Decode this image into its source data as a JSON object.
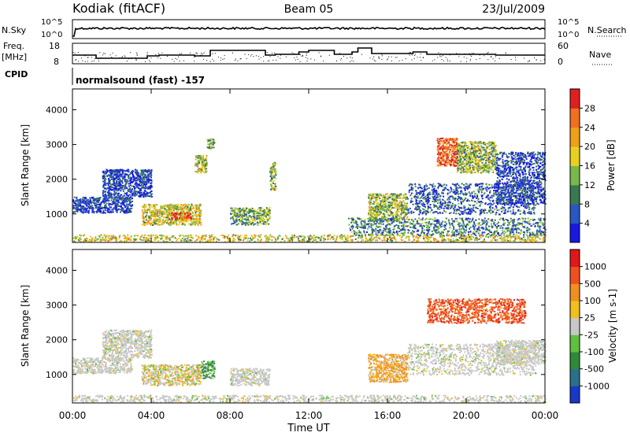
{
  "header": {
    "station": "Kodiak (fitACF)",
    "beam": "Beam 05",
    "date": "23/Jul/2009"
  },
  "noise_panel": {
    "left_label": "N.Sky",
    "left_ticks": [
      "10^5",
      "10^0"
    ],
    "right_ticks": [
      "10^5",
      "10^0"
    ],
    "right_label": "N.Search"
  },
  "freq_panel": {
    "left_label_line1": "Freq.",
    "left_label_line2": "[MHz]",
    "left_ticks": [
      "18",
      "8"
    ],
    "right_ticks": [
      "60",
      "0"
    ],
    "right_label": "Nave"
  },
  "cpid": {
    "label": "CPID",
    "program": "normalsound (fast) -157"
  },
  "chart_data": [
    {
      "type": "heatmap",
      "title": "",
      "xlabel": "Time UT",
      "ylabel": "Slant Range [km]",
      "x_ticks": [
        "00:00",
        "04:00",
        "08:00",
        "12:00",
        "16:00",
        "20:00",
        "00:00"
      ],
      "xlim": [
        0,
        24
      ],
      "y_ticks": [
        "1000",
        "2000",
        "3000",
        "4000"
      ],
      "ylim": [
        180,
        4600
      ],
      "colorbar": {
        "label": "Power [dB]",
        "ticks": [
          "28",
          "24",
          "20",
          "16",
          "12",
          "8",
          "4"
        ],
        "colors": [
          "#1818e0",
          "#2858c0",
          "#3a7850",
          "#7ab84a",
          "#e8d020",
          "#f0a018",
          "#f07020",
          "#e02020"
        ]
      },
      "regions": [
        {
          "x": [
            0.0,
            24.0
          ],
          "y": [
            220,
            420
          ],
          "level": 0.55
        },
        {
          "x": [
            0.0,
            3.0
          ],
          "y": [
            1050,
            1500
          ],
          "level": 0.15
        },
        {
          "x": [
            1.5,
            4.0
          ],
          "y": [
            1500,
            2300
          ],
          "level": 0.15
        },
        {
          "x": [
            3.5,
            6.5
          ],
          "y": [
            700,
            1300
          ],
          "level": 0.55
        },
        {
          "x": [
            5.0,
            6.0
          ],
          "y": [
            850,
            1050
          ],
          "level": 0.9
        },
        {
          "x": [
            6.2,
            6.8
          ],
          "y": [
            2200,
            2700
          ],
          "level": 0.5
        },
        {
          "x": [
            6.8,
            7.2
          ],
          "y": [
            2900,
            3200
          ],
          "level": 0.4
        },
        {
          "x": [
            8.0,
            10.0
          ],
          "y": [
            700,
            1200
          ],
          "level": 0.4
        },
        {
          "x": [
            10.0,
            10.3
          ],
          "y": [
            1700,
            2500
          ],
          "level": 0.45
        },
        {
          "x": [
            15.0,
            17.0
          ],
          "y": [
            800,
            1600
          ],
          "level": 0.45
        },
        {
          "x": [
            14.0,
            24.0
          ],
          "y": [
            400,
            900
          ],
          "level": 0.3
        },
        {
          "x": [
            17.0,
            23.5
          ],
          "y": [
            1000,
            1900
          ],
          "level": 0.2
        },
        {
          "x": [
            18.5,
            19.5
          ],
          "y": [
            2400,
            3200
          ],
          "level": 0.85
        },
        {
          "x": [
            19.5,
            21.5
          ],
          "y": [
            2200,
            3100
          ],
          "level": 0.45
        },
        {
          "x": [
            21.5,
            24.0
          ],
          "y": [
            1300,
            2800
          ],
          "level": 0.15
        }
      ]
    },
    {
      "type": "heatmap",
      "title": "",
      "xlabel": "Time UT",
      "ylabel": "Slant Range [km]",
      "x_ticks": [
        "00:00",
        "04:00",
        "08:00",
        "12:00",
        "16:00",
        "20:00",
        "00:00"
      ],
      "xlim": [
        0,
        24
      ],
      "y_ticks": [
        "1000",
        "2000",
        "3000",
        "4000"
      ],
      "ylim": [
        180,
        4600
      ],
      "colorbar": {
        "label": "Velocity [m s-1]",
        "ticks": [
          "1000",
          "500",
          "100",
          "25",
          "-25",
          "-100",
          "-500",
          "-1000"
        ],
        "colors": [
          "#1838c8",
          "#2a7088",
          "#2e8a3a",
          "#60c040",
          "#c8c8c8",
          "#f0c020",
          "#f09020",
          "#f05020",
          "#e01818"
        ]
      },
      "regions": [
        {
          "x": [
            0.0,
            24.0
          ],
          "y": [
            220,
            420
          ],
          "class": "ground"
        },
        {
          "x": [
            0.0,
            3.0
          ],
          "y": [
            1050,
            1500
          ],
          "class": "ground"
        },
        {
          "x": [
            1.5,
            4.0
          ],
          "y": [
            1500,
            2300
          ],
          "class": "ground"
        },
        {
          "x": [
            3.5,
            6.5
          ],
          "y": [
            700,
            1300
          ],
          "class": "mixed"
        },
        {
          "x": [
            6.5,
            7.2
          ],
          "y": [
            900,
            1400
          ],
          "class": "green"
        },
        {
          "x": [
            8.0,
            10.0
          ],
          "y": [
            700,
            1200
          ],
          "class": "ground"
        },
        {
          "x": [
            15.0,
            17.0
          ],
          "y": [
            800,
            1600
          ],
          "class": "orange"
        },
        {
          "x": [
            17.0,
            23.5
          ],
          "y": [
            1000,
            1900
          ],
          "class": "ground"
        },
        {
          "x": [
            18.0,
            23.0
          ],
          "y": [
            2500,
            3200
          ],
          "class": "red"
        },
        {
          "x": [
            21.5,
            24.0
          ],
          "y": [
            1300,
            2000
          ],
          "class": "ground"
        }
      ]
    }
  ]
}
